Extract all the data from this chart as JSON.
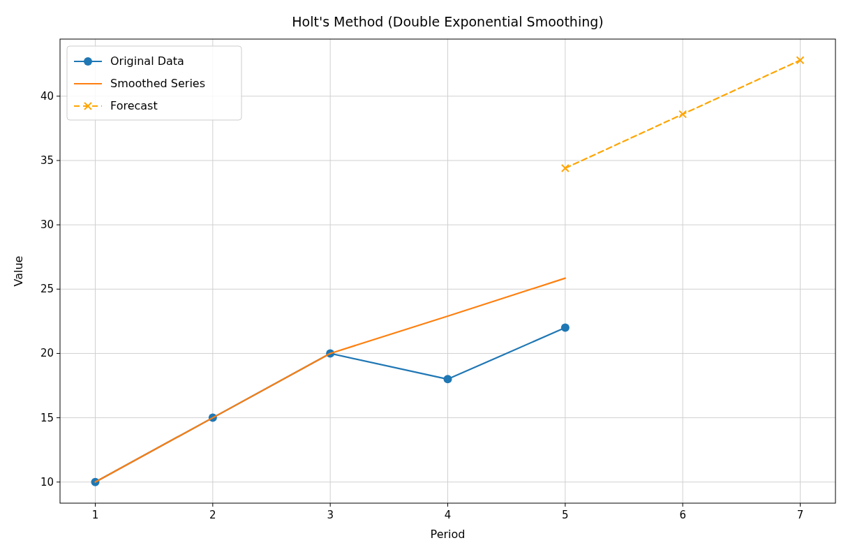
{
  "chart_data": {
    "type": "line",
    "title": "Holt's Method (Double Exponential Smoothing)",
    "xlabel": "Period",
    "ylabel": "Value",
    "xlim": [
      0.7,
      7.3
    ],
    "xticks": [
      1,
      2,
      3,
      4,
      5,
      6,
      7
    ],
    "ylim": [
      8.36,
      44.44
    ],
    "yticks": [
      10,
      15,
      20,
      25,
      30,
      35,
      40
    ],
    "grid": true,
    "legend": "top left",
    "series": [
      {
        "name": "Original Data",
        "color": "#1f77b4",
        "x": [
          1,
          2,
          3,
          4,
          5
        ],
        "values": [
          10,
          15,
          20,
          18,
          22
        ],
        "marker": "circle",
        "line_style": "solid"
      },
      {
        "name": "Smoothed Series",
        "color": "#ff7f0e",
        "x": [
          1,
          2,
          3,
          4,
          5
        ],
        "values": [
          10,
          15,
          20,
          22.9,
          25.85
        ],
        "marker": "none",
        "line_style": "solid"
      },
      {
        "name": "Forecast",
        "color": "#ffa500",
        "x": [
          5,
          6,
          7
        ],
        "values": [
          34.4,
          38.6,
          42.8
        ],
        "marker": "cross",
        "line_style": "dashed"
      }
    ]
  }
}
